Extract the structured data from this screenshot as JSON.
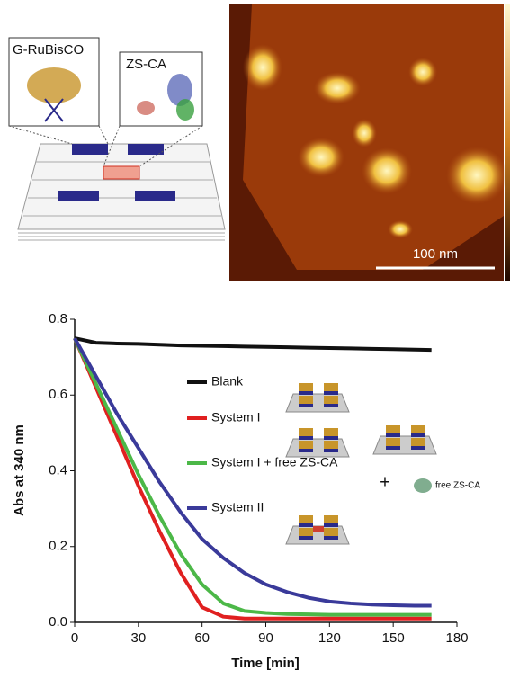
{
  "schematic": {
    "labels": [
      "G-RuBisCO",
      "ZS-CA"
    ]
  },
  "afm_image": {
    "scale_bar": "100 nm"
  },
  "chart_data": {
    "type": "line",
    "xlabel": "Time [min]",
    "ylabel": "Abs at 340 nm",
    "x": [
      0,
      10,
      20,
      30,
      40,
      50,
      60,
      70,
      80,
      90,
      100,
      110,
      120,
      130,
      140,
      150,
      160,
      168
    ],
    "series": [
      {
        "name": "Blank",
        "color": "#111111",
        "values": [
          0.75,
          0.738,
          0.736,
          0.735,
          0.733,
          0.731,
          0.73,
          0.729,
          0.728,
          0.727,
          0.726,
          0.725,
          0.724,
          0.723,
          0.722,
          0.721,
          0.72,
          0.719
        ]
      },
      {
        "name": "System I",
        "color": "#e02020",
        "values": [
          0.75,
          0.62,
          0.49,
          0.36,
          0.24,
          0.13,
          0.04,
          0.015,
          0.01,
          0.01,
          0.01,
          0.01,
          0.01,
          0.01,
          0.01,
          0.01,
          0.01,
          0.01
        ]
      },
      {
        "name": "System I + free ZS-CA",
        "color": "#4cb848",
        "values": [
          0.75,
          0.63,
          0.51,
          0.39,
          0.28,
          0.18,
          0.1,
          0.05,
          0.03,
          0.025,
          0.022,
          0.021,
          0.02,
          0.02,
          0.02,
          0.02,
          0.02,
          0.02
        ]
      },
      {
        "name": "System II",
        "color": "#3a3a9a",
        "values": [
          0.75,
          0.65,
          0.55,
          0.46,
          0.37,
          0.29,
          0.22,
          0.17,
          0.13,
          0.1,
          0.08,
          0.065,
          0.055,
          0.05,
          0.047,
          0.045,
          0.044,
          0.044
        ]
      }
    ],
    "xlim": [
      0,
      180
    ],
    "xticks": [
      0,
      30,
      60,
      90,
      120,
      150,
      180
    ],
    "ylim": [
      0,
      0.8
    ],
    "yticks": [
      {
        "value": 0,
        "label": "0.0"
      },
      0.2,
      0.4,
      0.6,
      0.8
    ],
    "legend": "center",
    "annotations": [
      "+",
      "free ZS-CA"
    ]
  }
}
